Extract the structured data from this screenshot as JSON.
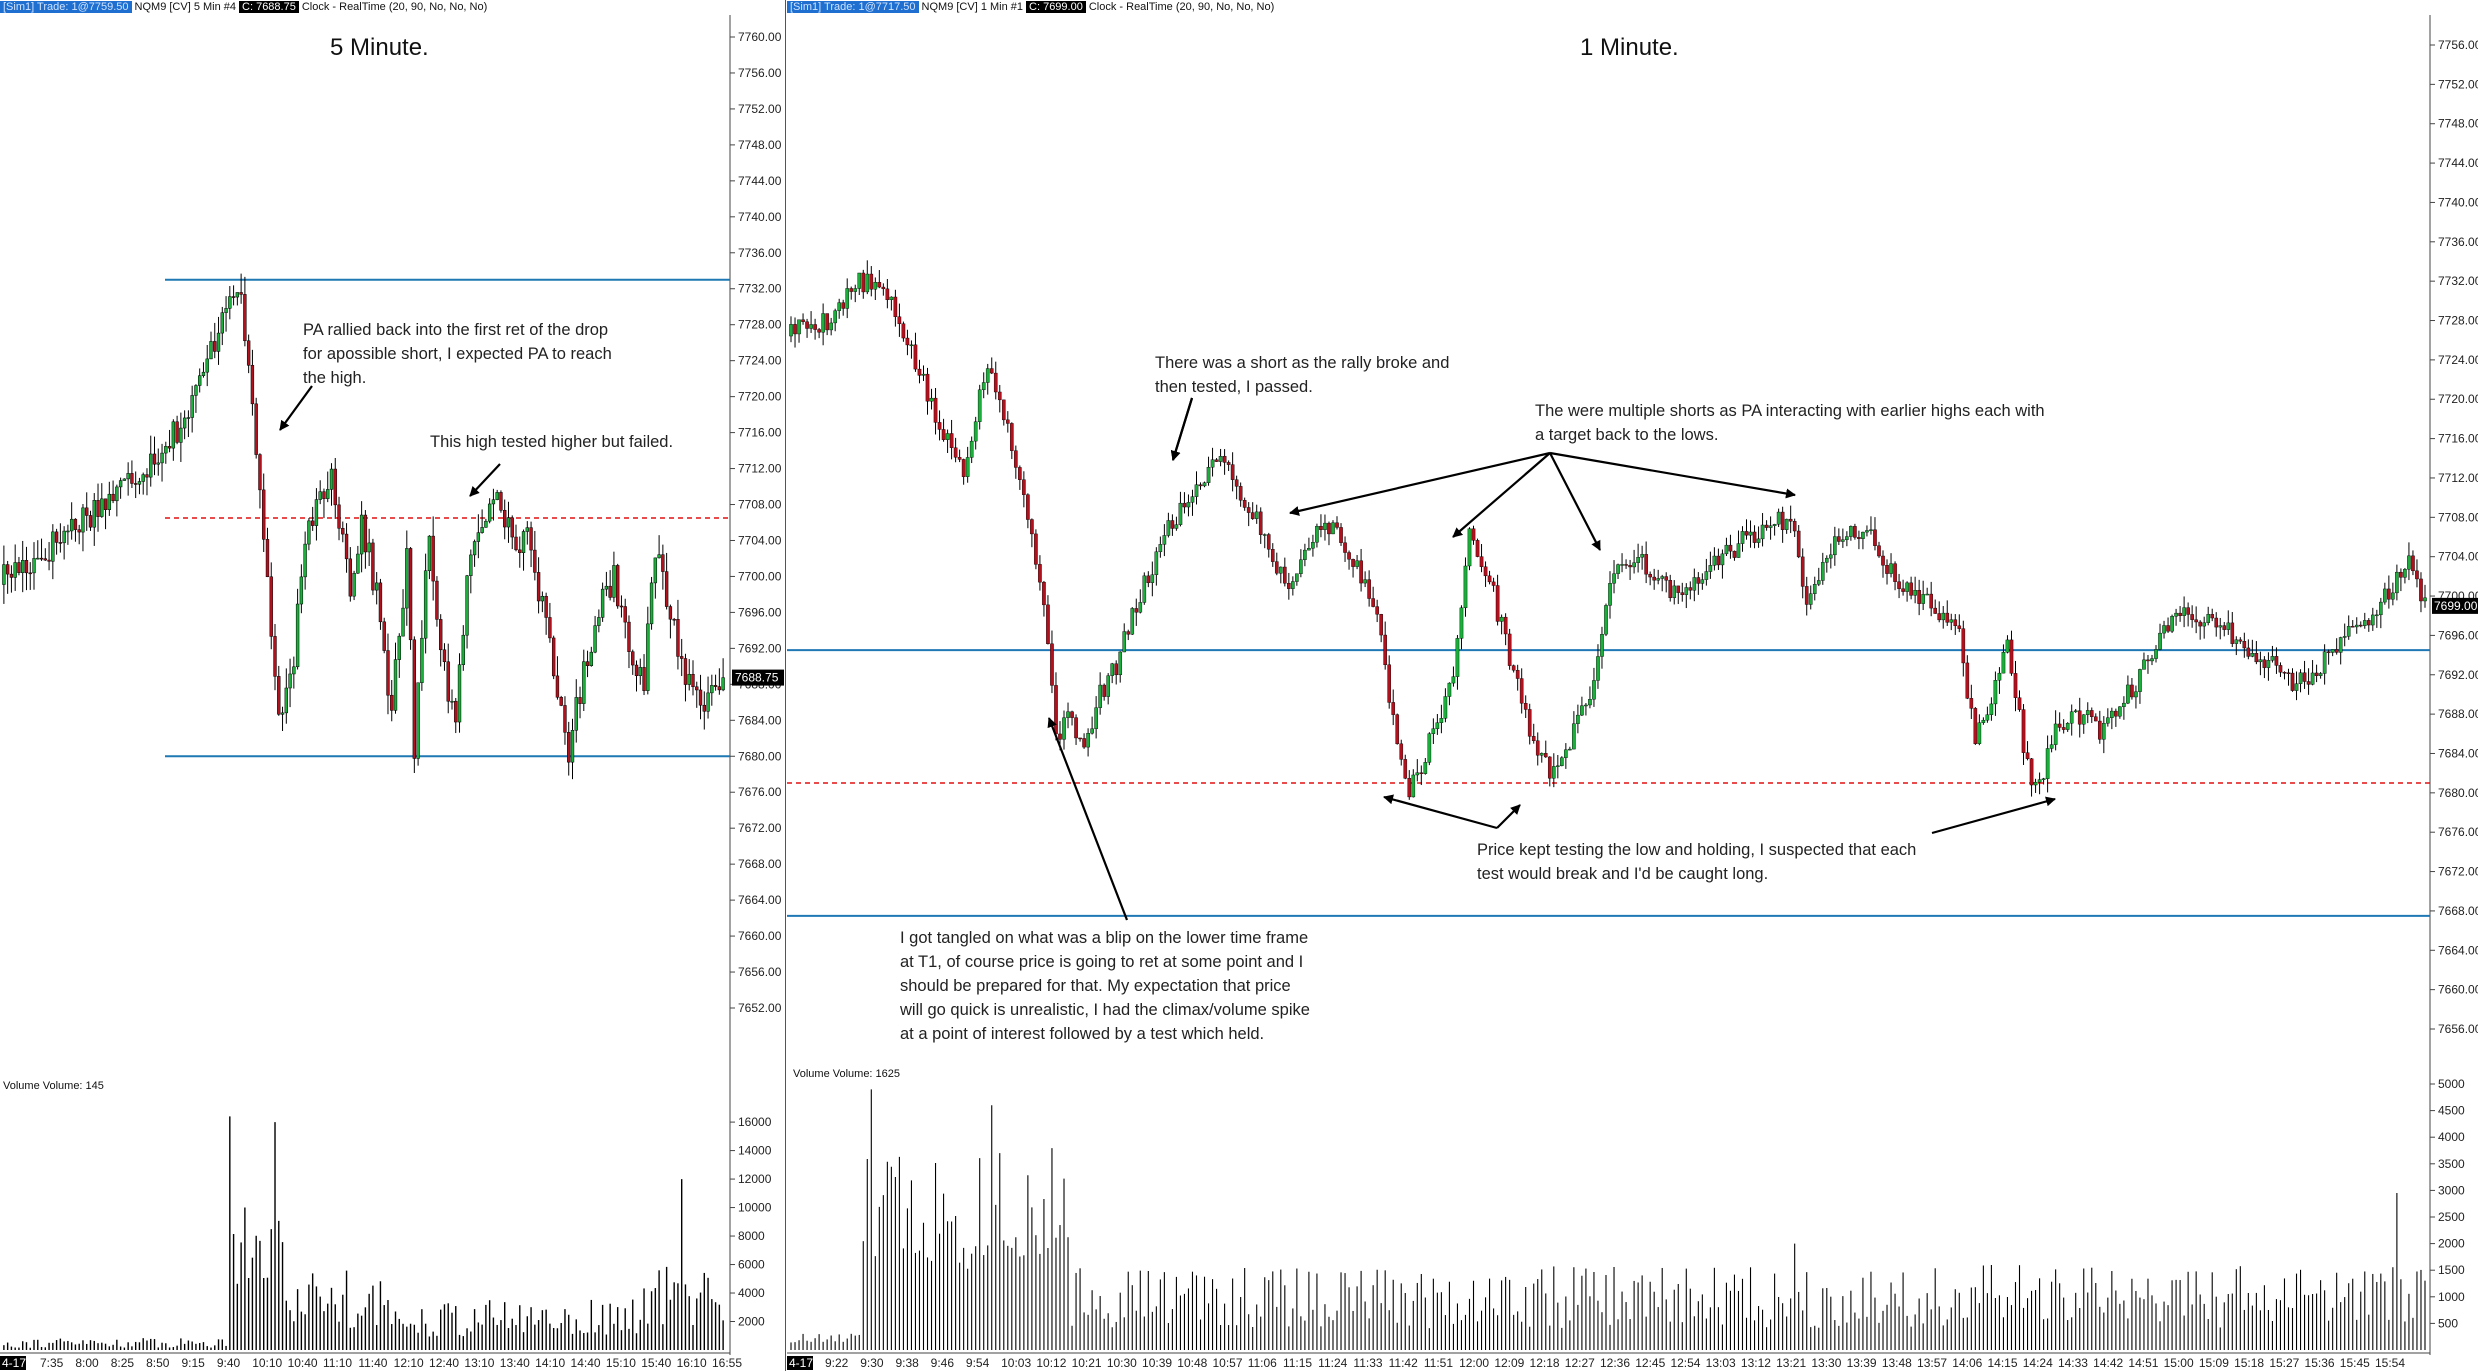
{
  "left_chart": {
    "header": {
      "account": "[Sim1]  Trade: 1@7759.50",
      "instrument": "NQM9 [CV]  5 Min   #4",
      "close": "C: 7688.75",
      "clock": "Clock - RealTime   (20, 90, No, No, No)"
    },
    "title": "5 Minute.",
    "price_ticks": [
      "7760.00",
      "7756.00",
      "7752.00",
      "7748.00",
      "7744.00",
      "7740.00",
      "7736.00",
      "7732.00",
      "7728.00",
      "7724.00",
      "7720.00",
      "7716.00",
      "7712.00",
      "7708.00",
      "7704.00",
      "7700.00",
      "7696.00",
      "7692.00",
      "7688.00",
      "7684.00",
      "7680.00",
      "7676.00",
      "7672.00",
      "7668.00",
      "7664.00",
      "7660.00",
      "7656.00",
      "7652.00"
    ],
    "last_price_label": "7688.75",
    "volume_label": "Volume  Volume: 145",
    "volume_ticks": [
      "16000",
      "14000",
      "12000",
      "10000",
      "8000",
      "6000",
      "4000",
      "2000"
    ],
    "time_labels": [
      "4-17",
      "7:35",
      "8:00",
      "8:25",
      "8:50",
      "9:15",
      "9:40",
      "10:10",
      "10:40",
      "11:10",
      "11:40",
      "12:10",
      "12:40",
      "13:10",
      "13:40",
      "14:10",
      "14:40",
      "15:10",
      "15:40",
      "16:10",
      "16:55"
    ],
    "annotations": [
      {
        "lines": [
          "PA rallied back into the first ret of the drop",
          "for apossible short, I expected PA to reach",
          "the high."
        ]
      },
      {
        "lines": [
          "This high tested higher but failed."
        ]
      }
    ],
    "levels": {
      "blue_high": 7733,
      "blue_low": 7680,
      "red_dashed": 7706.5
    },
    "colors": {
      "up": "#1aaf3a",
      "down": "#b3101d",
      "level_blue": "#1f78b4",
      "level_red": "#e01010"
    }
  },
  "right_chart": {
    "header": {
      "account": "[Sim1]  Trade: 1@7717.50",
      "instrument": "NQM9 [CV]  1 Min   #1",
      "close": "C: 7699.00",
      "clock": "Clock - RealTime   (20, 90, No, No, No)"
    },
    "title": "1 Minute.",
    "price_ticks": [
      "7756.00",
      "7752.00",
      "7748.00",
      "7744.00",
      "7740.00",
      "7736.00",
      "7732.00",
      "7728.00",
      "7724.00",
      "7720.00",
      "7716.00",
      "7712.00",
      "7708.00",
      "7704.00",
      "7700.00",
      "7696.00",
      "7692.00",
      "7688.00",
      "7684.00",
      "7680.00",
      "7676.00",
      "7672.00",
      "7668.00",
      "7664.00",
      "7660.00",
      "7656.00"
    ],
    "last_price_label": "7699.00",
    "volume_label": "Volume  Volume: 1625",
    "volume_ticks": [
      "5000",
      "4500",
      "4000",
      "3500",
      "3000",
      "2500",
      "2000",
      "1500",
      "1000",
      "500"
    ],
    "time_labels": [
      "4-17",
      "9:22",
      "9:30",
      "9:38",
      "9:46",
      "9:54",
      "10:03",
      "10:12",
      "10:21",
      "10:30",
      "10:39",
      "10:48",
      "10:57",
      "11:06",
      "11:15",
      "11:24",
      "11:33",
      "11:42",
      "11:51",
      "12:00",
      "12:09",
      "12:18",
      "12:27",
      "12:36",
      "12:45",
      "12:54",
      "13:03",
      "13:12",
      "13:21",
      "13:30",
      "13:39",
      "13:48",
      "13:57",
      "14:06",
      "14:15",
      "14:24",
      "14:33",
      "14:42",
      "14:51",
      "15:00",
      "15:09",
      "15:18",
      "15:27",
      "15:36",
      "15:45",
      "15:54"
    ],
    "annotations": [
      {
        "lines": [
          "There was a short as the rally broke and",
          "then tested, I passed."
        ]
      },
      {
        "lines": [
          "The were multiple shorts as PA interacting with earlier highs each with",
          "a target back to the lows."
        ]
      },
      {
        "lines": [
          "Price kept testing the low and holding, I suspected that each",
          "test would break and I'd be caught long."
        ]
      },
      {
        "lines": [
          "I got tangled on what was a blip on the lower time frame",
          "at T1, of course price is going to ret at some point and I",
          "should be prepared for that.  My expectation that price",
          "will go quick is unrealistic,   I had the climax/volume spike",
          "at a point of interest followed by a test which held."
        ]
      }
    ],
    "levels": {
      "blue_mid": 7694.5,
      "blue_low": 7667.5,
      "red_dashed": 7681
    },
    "colors": {
      "up": "#1aaf3a",
      "down": "#b3101d",
      "level_blue": "#1f78b4",
      "level_red": "#e01010"
    }
  }
}
